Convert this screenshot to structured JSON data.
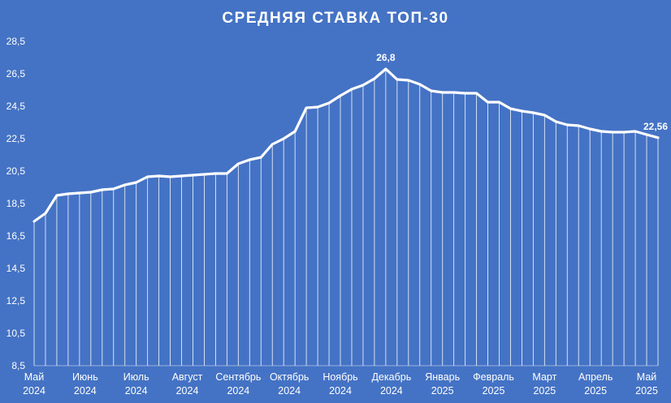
{
  "chart_data": {
    "type": "area",
    "title": "СРЕДНЯЯ СТАВКА ТОП-30",
    "xlabel": "",
    "ylabel": "",
    "ylim": [
      8.5,
      28.5
    ],
    "yticks": [
      "28,5",
      "26,5",
      "24,5",
      "22,5",
      "20,5",
      "18,5",
      "16,5",
      "14,5",
      "12,5",
      "10,5",
      "8,5"
    ],
    "ytick_values": [
      28.5,
      26.5,
      24.5,
      22.5,
      20.5,
      18.5,
      16.5,
      14.5,
      12.5,
      10.5,
      8.5
    ],
    "month_labels": [
      {
        "month": "Май",
        "year": "2024",
        "index": 0
      },
      {
        "month": "Июнь",
        "year": "2024",
        "index": 4.5
      },
      {
        "month": "Июль",
        "year": "2024",
        "index": 9
      },
      {
        "month": "Август",
        "year": "2024",
        "index": 13.5
      },
      {
        "month": "Сентябрь",
        "year": "2024",
        "index": 18
      },
      {
        "month": "Октябрь",
        "year": "2024",
        "index": 22.5
      },
      {
        "month": "Ноябрь",
        "year": "2024",
        "index": 27
      },
      {
        "month": "Декабрь",
        "year": "2024",
        "index": 31.5
      },
      {
        "month": "Январь",
        "year": "2025",
        "index": 36
      },
      {
        "month": "Февраль",
        "year": "2025",
        "index": 40.5
      },
      {
        "month": "Март",
        "year": "2025",
        "index": 45
      },
      {
        "month": "Апрель",
        "year": "2025",
        "index": 49.5
      },
      {
        "month": "Май",
        "year": "2025",
        "index": 54
      }
    ],
    "series": [
      {
        "values": [
          17.4,
          17.9,
          19.0,
          19.1,
          19.15,
          19.2,
          19.35,
          19.4,
          19.65,
          19.8,
          20.15,
          20.2,
          20.15,
          20.2,
          20.25,
          20.3,
          20.35,
          20.35,
          20.95,
          21.2,
          21.35,
          22.15,
          22.5,
          22.95,
          24.4,
          24.45,
          24.7,
          25.15,
          25.55,
          25.8,
          26.2,
          26.8,
          26.15,
          26.1,
          25.85,
          25.45,
          25.35,
          25.35,
          25.3,
          25.3,
          24.75,
          24.75,
          24.35,
          24.2,
          24.1,
          23.95,
          23.55,
          23.35,
          23.3,
          23.1,
          22.95,
          22.9,
          22.9,
          22.95,
          22.75,
          22.56
        ]
      }
    ],
    "annotations": [
      {
        "text": "26,8",
        "index": 31,
        "value": 26.8
      },
      {
        "text": "22,56",
        "index": 55,
        "value": 22.56
      }
    ],
    "grid": "vertical drop lines at each point",
    "legend": "none",
    "colors": {
      "background": "#4472C4",
      "line": "#FFFFFF",
      "droplines": "#FFFFFF"
    }
  }
}
